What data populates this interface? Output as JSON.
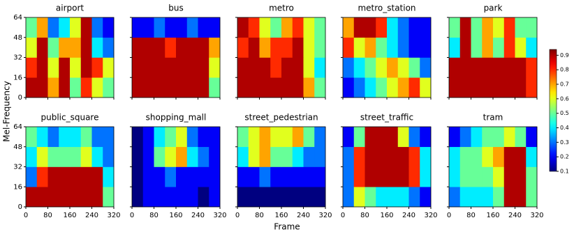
{
  "chart_data": {
    "type": "heatmap",
    "xlabel": "Frame",
    "ylabel": "Mel-Frequency",
    "xlim": [
      0,
      320
    ],
    "ylim": [
      0,
      64
    ],
    "xticks": [
      0,
      80,
      160,
      240,
      320
    ],
    "yticks": [
      0,
      16,
      32,
      48,
      64
    ],
    "colormap": "jet",
    "clim": [
      0.1,
      0.94
    ],
    "cticks": [
      0.1,
      0.2,
      0.3,
      0.4,
      0.5,
      0.6,
      0.7,
      0.8,
      0.9
    ],
    "panels": [
      {
        "title": "airport",
        "values": [
          [
            0.9,
            0.9,
            0.7,
            0.9,
            0.5,
            0.8,
            0.6,
            0.5
          ],
          [
            0.8,
            0.9,
            0.6,
            0.9,
            0.6,
            0.9,
            0.8,
            0.6
          ],
          [
            0.6,
            0.9,
            0.5,
            0.7,
            0.7,
            0.9,
            0.4,
            0.3
          ],
          [
            0.5,
            0.7,
            0.3,
            0.4,
            0.6,
            0.9,
            0.3,
            0.2
          ]
        ]
      },
      {
        "title": "bus",
        "values": [
          [
            0.9,
            0.9,
            0.9,
            0.9,
            0.9,
            0.9,
            0.9,
            0.5
          ],
          [
            0.9,
            0.9,
            0.9,
            0.9,
            0.9,
            0.9,
            0.9,
            0.6
          ],
          [
            0.9,
            0.9,
            0.9,
            0.8,
            0.9,
            0.9,
            0.9,
            0.7
          ],
          [
            0.2,
            0.2,
            0.3,
            0.2,
            0.2,
            0.3,
            0.2,
            0.2
          ]
        ]
      },
      {
        "title": "metro",
        "values": [
          [
            0.9,
            0.9,
            0.9,
            0.9,
            0.9,
            0.9,
            0.7,
            0.5
          ],
          [
            0.9,
            0.9,
            0.9,
            0.8,
            0.9,
            0.9,
            0.6,
            0.4
          ],
          [
            0.8,
            0.9,
            0.7,
            0.8,
            0.8,
            0.9,
            0.6,
            0.5
          ],
          [
            0.9,
            0.8,
            0.6,
            0.5,
            0.7,
            0.8,
            0.6,
            0.5
          ]
        ]
      },
      {
        "title": "metro_station",
        "values": [
          [
            0.2,
            0.3,
            0.4,
            0.5,
            0.6,
            0.7,
            0.8,
            0.6
          ],
          [
            0.3,
            0.4,
            0.5,
            0.6,
            0.7,
            0.6,
            0.5,
            0.3
          ],
          [
            0.8,
            0.6,
            0.7,
            0.5,
            0.4,
            0.3,
            0.2,
            0.2
          ],
          [
            0.7,
            0.9,
            0.9,
            0.8,
            0.4,
            0.3,
            0.2,
            0.2
          ]
        ]
      },
      {
        "title": "park",
        "values": [
          [
            0.9,
            0.9,
            0.9,
            0.9,
            0.9,
            0.9,
            0.9,
            0.8
          ],
          [
            0.9,
            0.9,
            0.9,
            0.9,
            0.9,
            0.9,
            0.9,
            0.8
          ],
          [
            0.4,
            0.9,
            0.5,
            0.7,
            0.5,
            0.8,
            0.6,
            0.4
          ],
          [
            0.5,
            0.9,
            0.5,
            0.7,
            0.6,
            0.8,
            0.5,
            0.5
          ]
        ]
      },
      {
        "title": "public_square",
        "values": [
          [
            0.9,
            0.9,
            0.9,
            0.9,
            0.9,
            0.9,
            0.9,
            0.5
          ],
          [
            0.3,
            0.8,
            0.9,
            0.9,
            0.9,
            0.9,
            0.9,
            0.4
          ],
          [
            0.4,
            0.6,
            0.5,
            0.5,
            0.5,
            0.6,
            0.4,
            0.3
          ],
          [
            0.5,
            0.4,
            0.3,
            0.4,
            0.4,
            0.5,
            0.3,
            0.3
          ]
        ]
      },
      {
        "title": "shopping_mall",
        "values": [
          [
            0.1,
            0.2,
            0.2,
            0.2,
            0.2,
            0.2,
            0.1,
            0.2
          ],
          [
            0.1,
            0.2,
            0.2,
            0.3,
            0.2,
            0.2,
            0.2,
            0.2
          ],
          [
            0.1,
            0.2,
            0.5,
            0.6,
            0.7,
            0.4,
            0.3,
            0.2
          ],
          [
            0.1,
            0.2,
            0.4,
            0.5,
            0.6,
            0.3,
            0.2,
            0.2
          ]
        ]
      },
      {
        "title": "street_pedestrian",
        "values": [
          [
            0.1,
            0.1,
            0.1,
            0.1,
            0.1,
            0.1,
            0.1,
            0.1
          ],
          [
            0.2,
            0.2,
            0.3,
            0.2,
            0.2,
            0.2,
            0.2,
            0.2
          ],
          [
            0.4,
            0.6,
            0.7,
            0.5,
            0.5,
            0.4,
            0.3,
            0.3
          ],
          [
            0.5,
            0.6,
            0.7,
            0.6,
            0.6,
            0.7,
            0.5,
            0.3
          ]
        ]
      },
      {
        "title": "street_traffic",
        "values": [
          [
            0.3,
            0.6,
            0.5,
            0.4,
            0.4,
            0.4,
            0.3,
            0.2
          ],
          [
            0.3,
            0.8,
            0.9,
            0.9,
            0.9,
            0.9,
            0.8,
            0.4
          ],
          [
            0.3,
            0.8,
            0.9,
            0.9,
            0.9,
            0.9,
            0.8,
            0.4
          ],
          [
            0.2,
            0.5,
            0.9,
            0.9,
            0.9,
            0.6,
            0.3,
            0.2
          ]
        ]
      },
      {
        "title": "tram",
        "values": [
          [
            0.3,
            0.4,
            0.4,
            0.4,
            0.5,
            0.9,
            0.9,
            0.5
          ],
          [
            0.4,
            0.5,
            0.5,
            0.5,
            0.6,
            0.9,
            0.9,
            0.5
          ],
          [
            0.4,
            0.5,
            0.5,
            0.6,
            0.7,
            0.9,
            0.9,
            0.4
          ],
          [
            0.2,
            0.3,
            0.4,
            0.5,
            0.5,
            0.6,
            0.5,
            0.2
          ]
        ]
      }
    ]
  }
}
